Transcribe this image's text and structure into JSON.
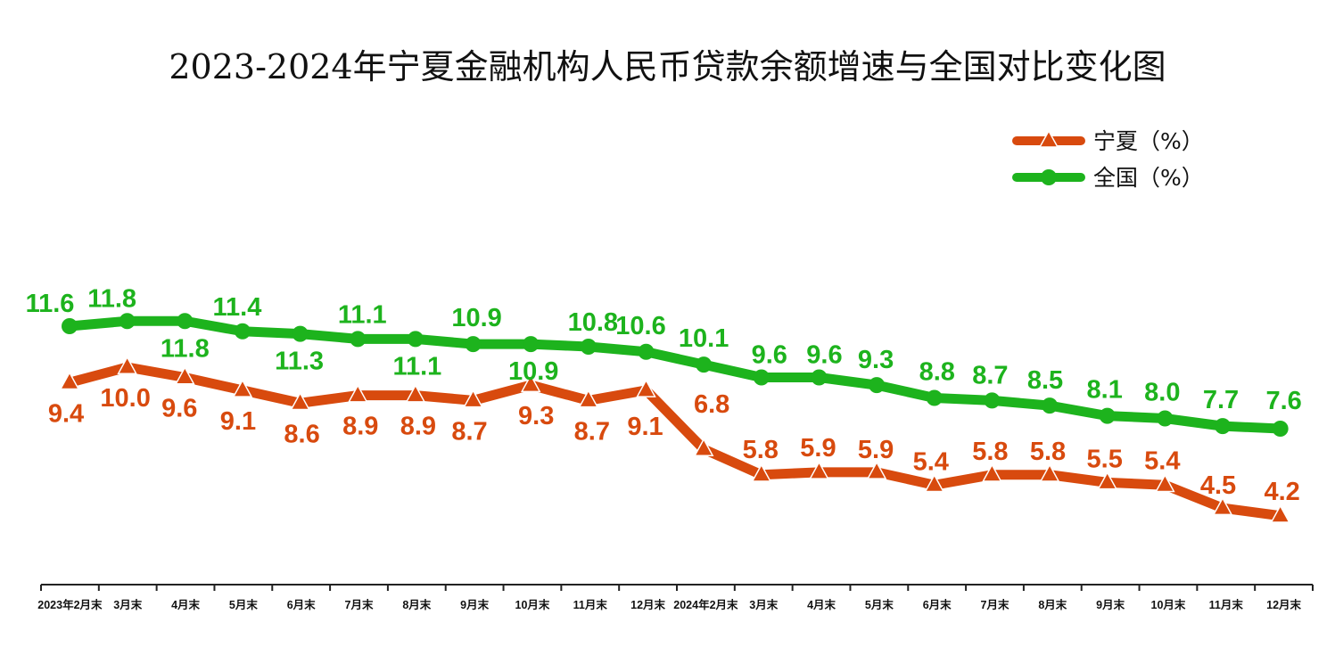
{
  "chart_data": {
    "type": "line",
    "title": "2023-2024年宁夏金融机构人民币贷款余额增速与全国对比变化图",
    "categories": [
      "2023年2月末",
      "3月末",
      "4月末",
      "5月末",
      "6月末",
      "7月末",
      "8月末",
      "9月末",
      "10月末",
      "11月末",
      "12月末",
      "2024年2月末",
      "3月末",
      "4月末",
      "5月末",
      "6月末",
      "7月末",
      "8月末",
      "9月末",
      "10月末",
      "11月末",
      "12月末"
    ],
    "series": [
      {
        "name": "宁夏（%）",
        "color": "#D84A0E",
        "marker": "triangle",
        "values": [
          9.4,
          10.0,
          9.6,
          9.1,
          8.6,
          8.9,
          8.9,
          8.7,
          9.3,
          8.7,
          9.1,
          6.8,
          5.8,
          5.9,
          5.9,
          5.4,
          5.8,
          5.8,
          5.5,
          5.4,
          4.5,
          4.2
        ],
        "labels": [
          "9.4",
          "10.0",
          "9.6",
          "9.1",
          "8.6",
          "8.9",
          "8.9",
          "8.7",
          "9.3",
          "8.7",
          "9.1",
          "6.8",
          "5.8",
          "5.9",
          "5.9",
          "5.4",
          "5.8",
          "5.8",
          "5.5",
          "5.4",
          "4.5",
          "4.2"
        ]
      },
      {
        "name": "全国（%）",
        "color": "#1DB31D",
        "marker": "circle",
        "values": [
          11.6,
          11.8,
          11.8,
          11.4,
          11.3,
          11.1,
          11.1,
          10.9,
          10.9,
          10.8,
          10.6,
          10.1,
          9.6,
          9.6,
          9.3,
          8.8,
          8.7,
          8.5,
          8.1,
          8.0,
          7.7,
          7.6
        ],
        "labels": [
          "11.6",
          "11.8",
          "11.8",
          "11.4",
          "11.3",
          "11.1",
          "11.1",
          "10.9",
          "10.9",
          "10.8",
          "10.6",
          "10.1",
          "9.6",
          "9.6",
          "9.3",
          "8.8",
          "8.7",
          "8.5",
          "8.1",
          "8.0",
          "7.7",
          "7.6"
        ]
      }
    ],
    "legend_position": "top-right",
    "grid": false
  }
}
